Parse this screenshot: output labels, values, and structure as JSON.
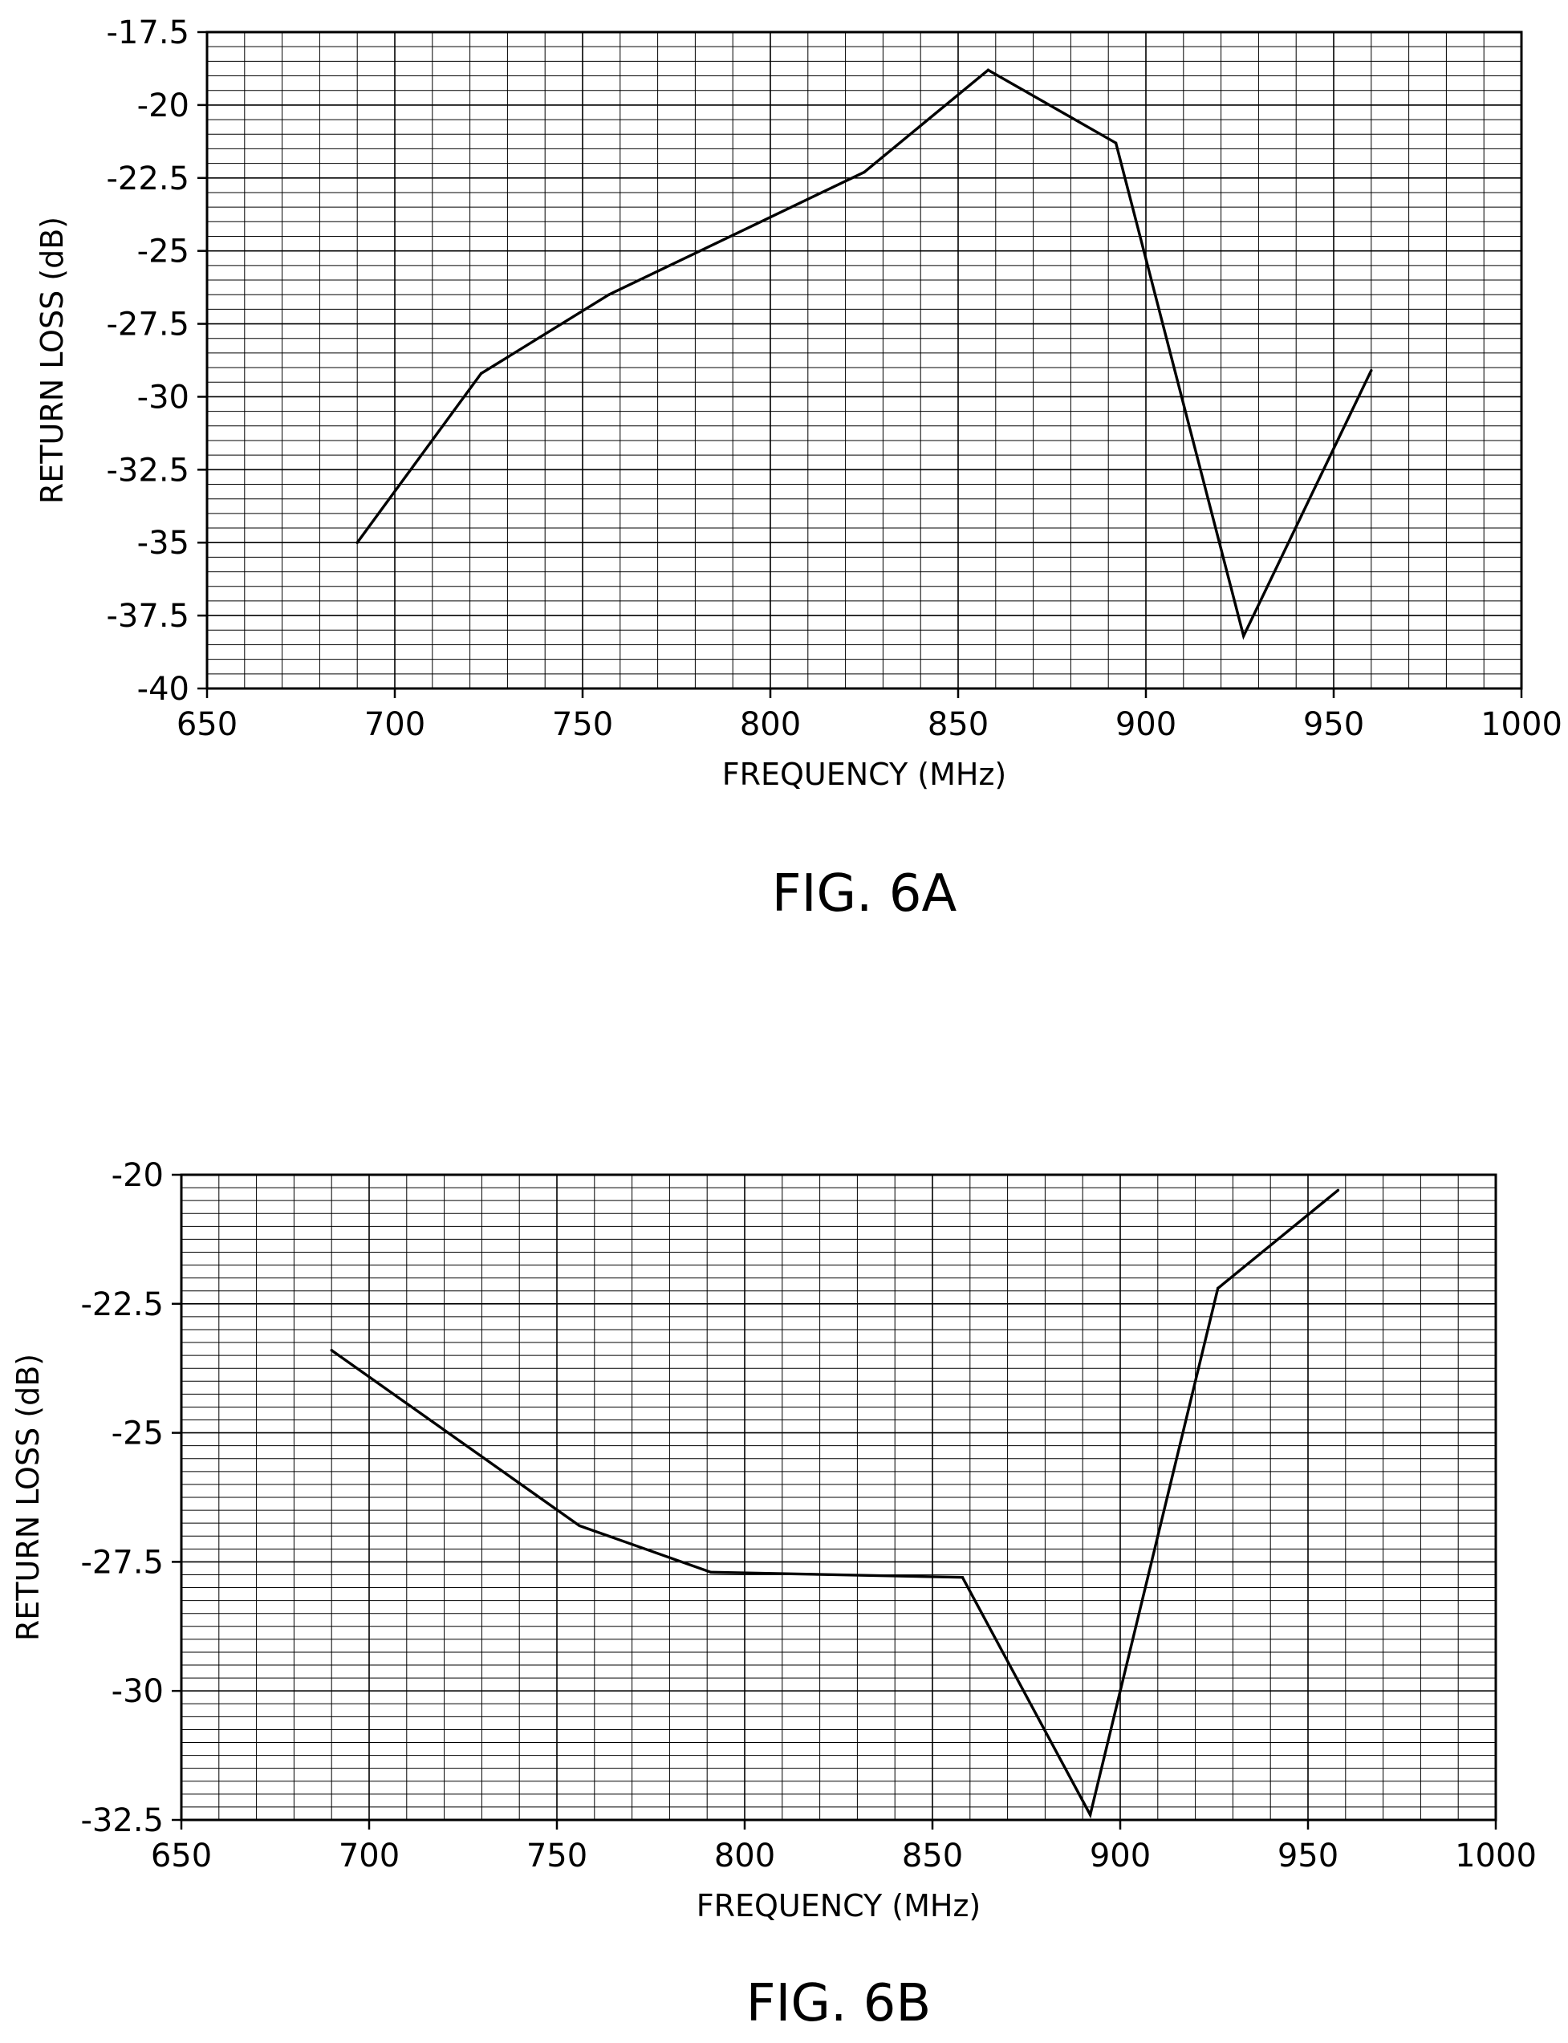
{
  "chart_data": [
    {
      "type": "line",
      "figure_label": "FIG. 6A",
      "title": "",
      "xlabel": "FREQUENCY (MHz)",
      "ylabel": "RETURN LOSS (dB)",
      "xlim": [
        650,
        1000
      ],
      "ylim": [
        -40,
        -17.5
      ],
      "x_ticks": [
        650,
        700,
        750,
        800,
        850,
        900,
        950,
        1000
      ],
      "y_ticks": [
        -17.5,
        -20,
        -22.5,
        -25,
        -27.5,
        -30,
        -32.5,
        -35,
        -37.5,
        -40
      ],
      "x_tick_labels": [
        "650",
        "700",
        "750",
        "800",
        "850",
        "900",
        "950",
        "1000"
      ],
      "y_tick_labels": [
        "-17.5",
        "-20",
        "-22.5",
        "-25",
        "-27.5",
        "-30",
        "-32.5",
        "-35",
        "-37.5",
        "-40"
      ],
      "x_minor_step": 10,
      "y_minor_step": 0.5,
      "grid": true,
      "series": [
        {
          "x": [
            690,
            723,
            757,
            825,
            858,
            892,
            926,
            960
          ],
          "y": [
            -35,
            -29.2,
            -26.5,
            -22.3,
            -18.8,
            -21.3,
            -38.2,
            -29.1
          ]
        }
      ]
    },
    {
      "type": "line",
      "figure_label": "FIG. 6B",
      "title": "",
      "xlabel": "FREQUENCY (MHz)",
      "ylabel": "RETURN LOSS (dB)",
      "xlim": [
        650,
        1000
      ],
      "ylim": [
        -32.5,
        -20
      ],
      "x_ticks": [
        650,
        700,
        750,
        800,
        850,
        900,
        950,
        1000
      ],
      "y_ticks": [
        -20,
        -22.5,
        -25,
        -27.5,
        -30,
        -32.5
      ],
      "x_tick_labels": [
        "650",
        "700",
        "750",
        "800",
        "850",
        "900",
        "950",
        "1000"
      ],
      "y_tick_labels": [
        "-20",
        "-22.5",
        "-25",
        "-27.5",
        "-30",
        "-32.5"
      ],
      "x_minor_step": 10,
      "y_minor_step": 0.25,
      "grid": true,
      "series": [
        {
          "x": [
            690,
            756,
            791,
            858,
            892,
            926,
            958
          ],
          "y": [
            -23.4,
            -26.8,
            -27.7,
            -27.8,
            -32.4,
            -22.2,
            -20.3
          ]
        }
      ]
    }
  ]
}
